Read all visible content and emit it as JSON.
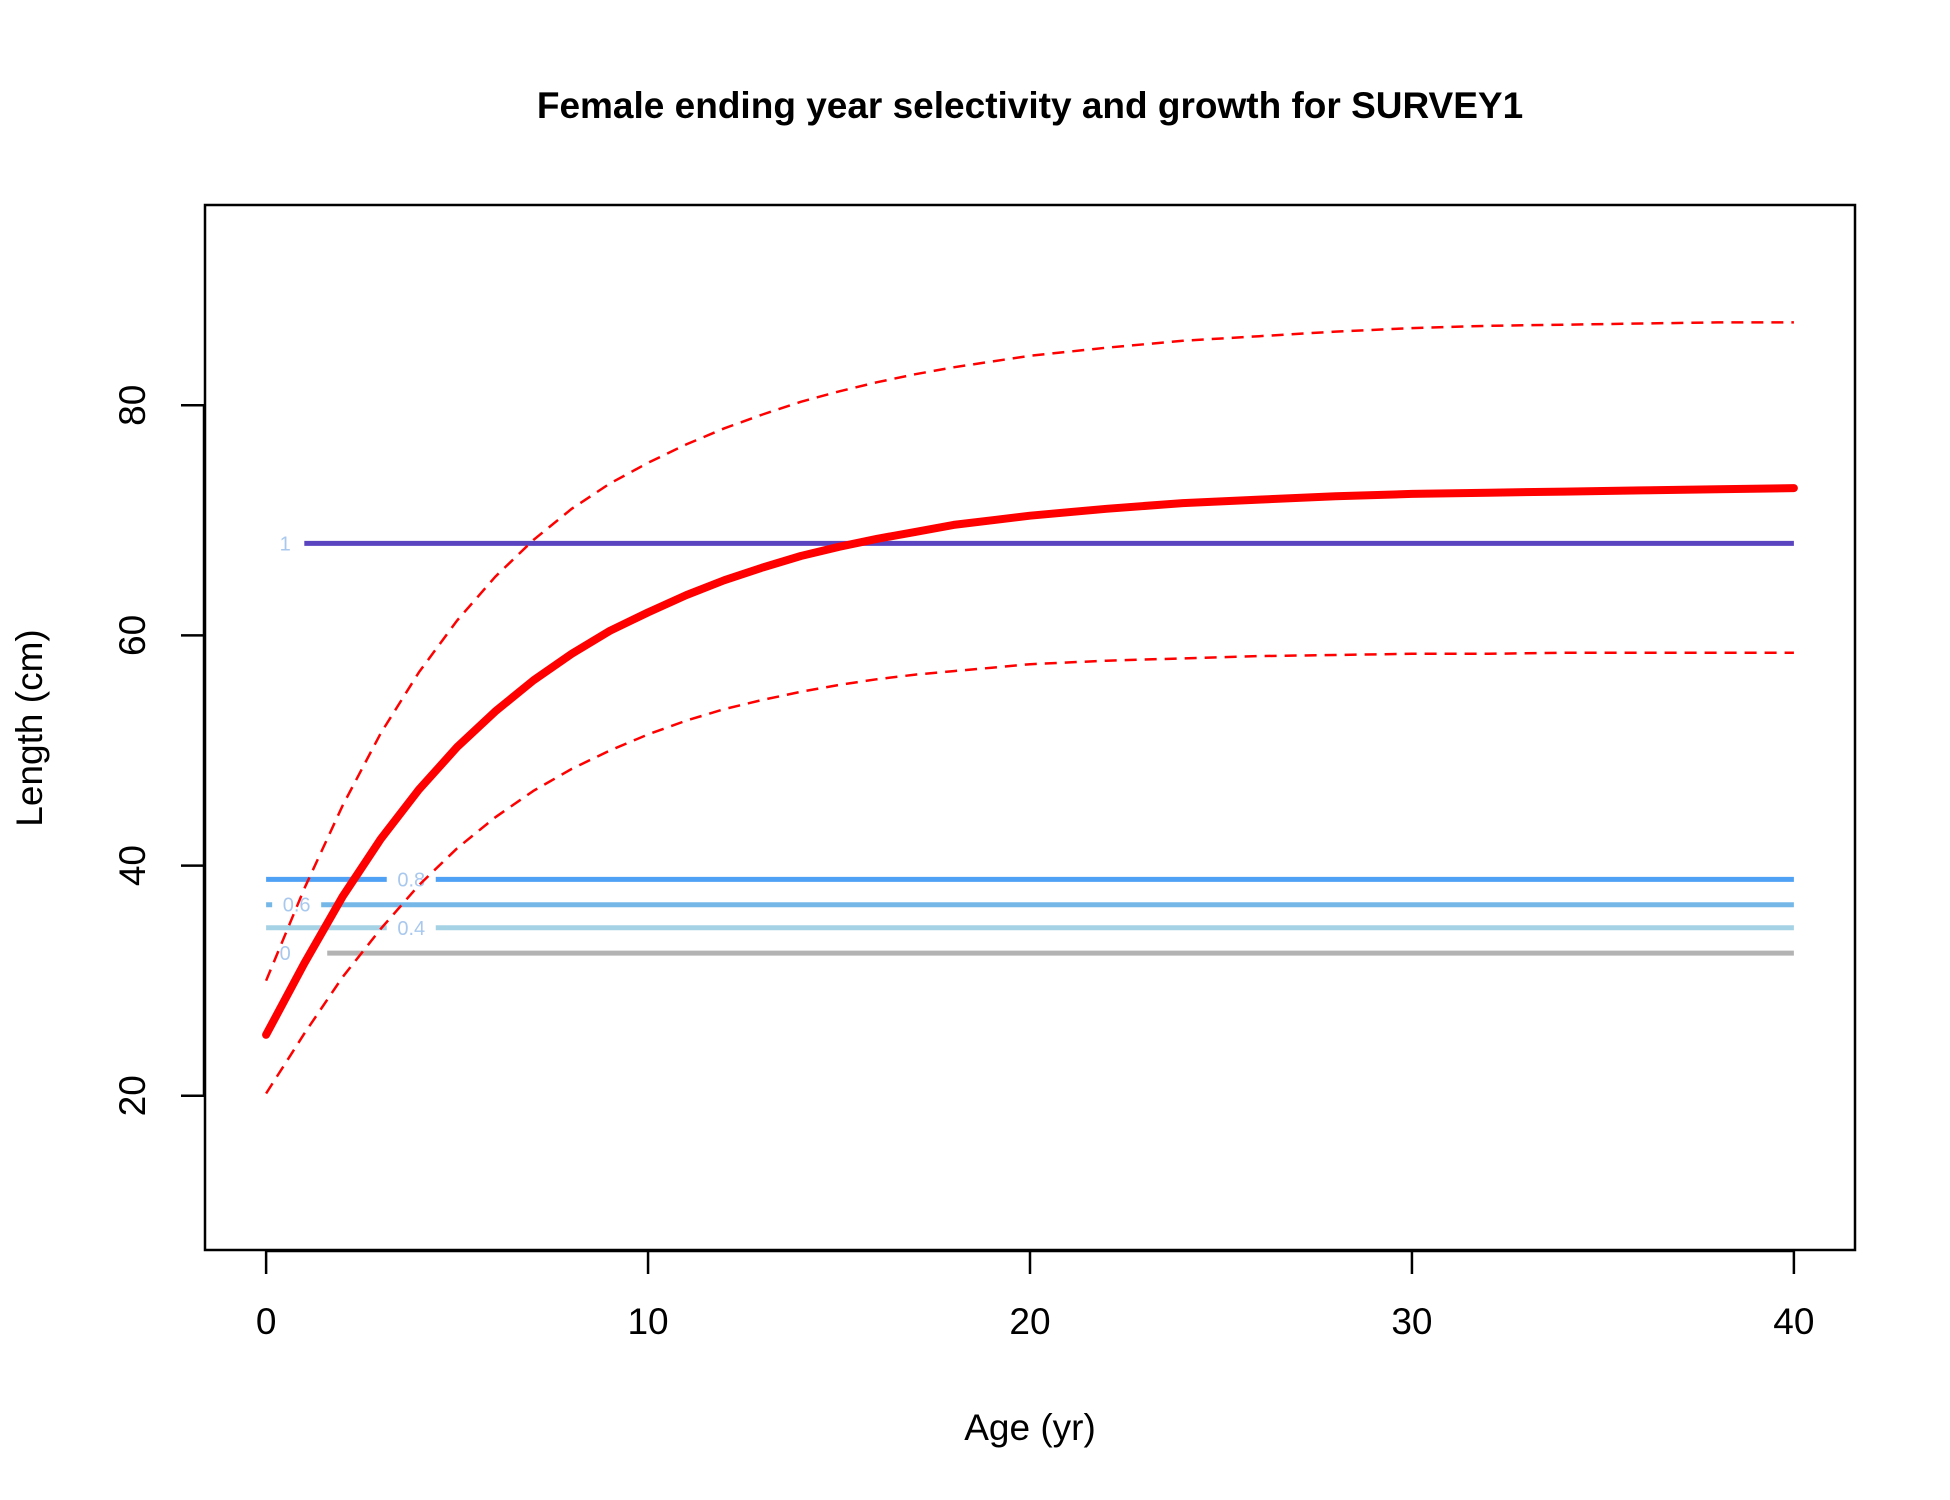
{
  "chart_data": {
    "type": "line",
    "title": "Female ending year selectivity and growth for SURVEY1",
    "xlabel": "Age (yr)",
    "ylabel": "Length (cm)",
    "xlim": [
      -1.6,
      41.6
    ],
    "ylim": [
      6.6,
      97.4
    ],
    "xticks": [
      0,
      10,
      20,
      30,
      40
    ],
    "yticks": [
      20,
      40,
      60,
      80
    ],
    "grid": false,
    "growth": {
      "x": [
        0,
        1,
        2,
        3,
        4,
        5,
        6,
        7,
        8,
        9,
        10,
        11,
        12,
        13,
        14,
        15,
        16,
        17,
        18,
        19,
        20,
        22,
        24,
        26,
        28,
        30,
        32,
        34,
        36,
        38,
        40
      ],
      "mean": [
        25.3,
        31.5,
        37.3,
        42.3,
        46.6,
        50.3,
        53.4,
        56.1,
        58.4,
        60.4,
        62.0,
        63.5,
        64.8,
        65.9,
        66.9,
        67.7,
        68.4,
        69.0,
        69.6,
        70.0,
        70.4,
        71.0,
        71.5,
        71.8,
        72.1,
        72.3,
        72.4,
        72.5,
        72.6,
        72.7,
        72.8
      ],
      "upper": [
        30.0,
        38.0,
        45.2,
        51.5,
        56.8,
        61.3,
        65.1,
        68.3,
        71.0,
        73.2,
        75.0,
        76.6,
        78.0,
        79.2,
        80.3,
        81.2,
        82.0,
        82.7,
        83.3,
        83.8,
        84.3,
        85.0,
        85.6,
        86.0,
        86.4,
        86.7,
        86.9,
        87.0,
        87.1,
        87.2,
        87.2
      ],
      "lower": [
        20.2,
        25.4,
        30.3,
        34.5,
        38.3,
        41.5,
        44.2,
        46.5,
        48.4,
        50.0,
        51.4,
        52.6,
        53.6,
        54.4,
        55.1,
        55.7,
        56.2,
        56.6,
        56.9,
        57.2,
        57.5,
        57.8,
        58.0,
        58.2,
        58.3,
        58.4,
        58.4,
        58.5,
        58.5,
        58.5,
        58.5
      ]
    },
    "selectivity_contours": [
      {
        "level": "0",
        "y": 32.4,
        "x_start": 1.6,
        "x_end": 40,
        "color": "#b3b3b3",
        "label_x": 0.5
      },
      {
        "level": "0.4",
        "y": 34.6,
        "x_start": 0,
        "x_end": 40,
        "color": "#a6d2e6",
        "label_x": 3.8
      },
      {
        "level": "0.6",
        "y": 36.6,
        "x_start": 0,
        "x_end": 40,
        "color": "#75b8e8",
        "label_x": 0.8
      },
      {
        "level": "0.8",
        "y": 38.8,
        "x_start": 0,
        "x_end": 40,
        "color": "#4ea1f5",
        "label_x": 3.8
      },
      {
        "level": "1",
        "y": 68.0,
        "x_start": 1.0,
        "x_end": 40,
        "color": "#5b44c0",
        "label_x": 0.5
      }
    ],
    "colors": {
      "growth_mean": "#ff0000",
      "growth_ci": "#ff0000",
      "label_text": "#a9c8ee"
    }
  }
}
